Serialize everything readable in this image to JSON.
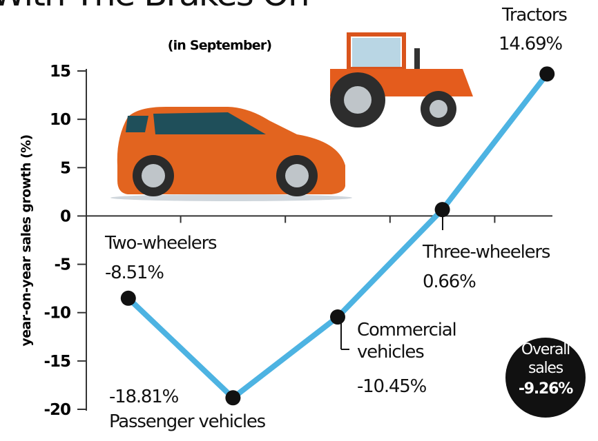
{
  "chart_data": {
    "type": "line",
    "title": "With The Brakes On",
    "subtitle": "(in September)",
    "y_label": "year-on-year sales growth (%)",
    "categories": [
      "Two-wheelers",
      "Passenger vehicles",
      "Commercial vehicles",
      "Three-wheelers",
      "Tractors"
    ],
    "values": [
      -8.51,
      -18.81,
      -10.45,
      0.66,
      14.69
    ],
    "value_labels": [
      "-8.51%",
      "-18.81%",
      "-10.45%",
      "0.66%",
      "14.69%"
    ],
    "color": "#4db3e2",
    "ylim": [
      -20,
      15
    ],
    "yticks": [
      -20,
      -15,
      -10,
      -5,
      0,
      5,
      10,
      15
    ],
    "annotation": {
      "text": "Overall sales",
      "value": -9.26,
      "value_label": "-9.26%"
    }
  }
}
